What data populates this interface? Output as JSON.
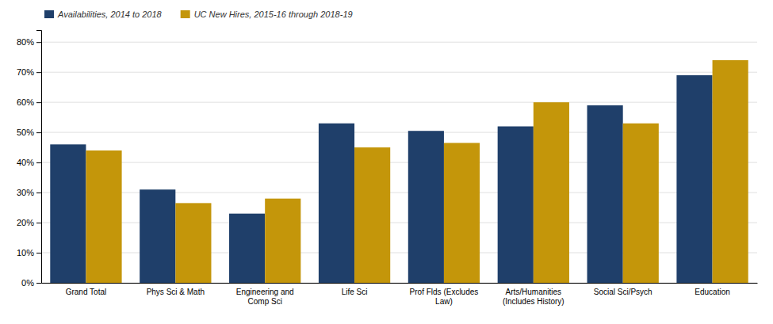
{
  "chart_data": {
    "type": "bar",
    "categories": [
      "Grand Total",
      "Phys Sci & Math",
      "Engineering and\nComp Sci",
      "Life Sci",
      "Prof Flds (Excludes\nLaw)",
      "Arts/Humanities\n(Includes History)",
      "Social Sci/Psych",
      "Education"
    ],
    "series": [
      {
        "name": "Availabilities, 2014 to 2018",
        "color": "#1F3F6A",
        "values": [
          0.46,
          0.31,
          0.23,
          0.53,
          0.505,
          0.52,
          0.59,
          0.69
        ]
      },
      {
        "name": "UC New Hires, 2015-16 through 2018-19",
        "color": "#C4960A",
        "values": [
          0.44,
          0.265,
          0.28,
          0.45,
          0.465,
          0.6,
          0.53,
          0.74
        ]
      }
    ],
    "ylim": [
      0,
      0.84
    ],
    "yticks": [
      {
        "value": 0.0,
        "label": "0%"
      },
      {
        "value": 0.1,
        "label": "10%"
      },
      {
        "value": 0.2,
        "label": "20%"
      },
      {
        "value": 0.3,
        "label": "30%"
      },
      {
        "value": 0.4,
        "label": "40%"
      },
      {
        "value": 0.5,
        "label": "50%"
      },
      {
        "value": 0.6,
        "label": "60%"
      },
      {
        "value": 0.7,
        "label": "70%"
      },
      {
        "value": 0.8,
        "label": "80%"
      }
    ],
    "grid": true,
    "legend": "upper left"
  }
}
